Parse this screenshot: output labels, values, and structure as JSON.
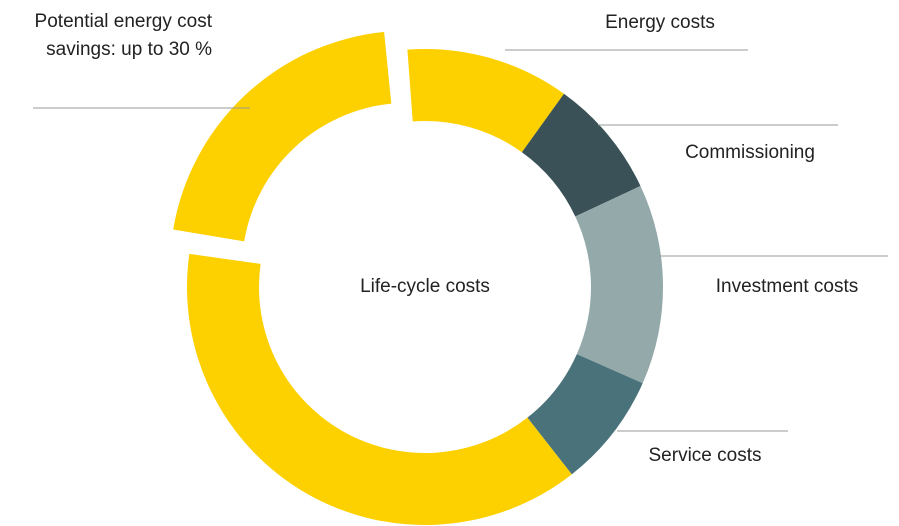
{
  "chart_data": {
    "type": "pie",
    "center_label": "Life-cycle costs",
    "categories": [
      "Potential energy cost savings: up to 30 %",
      "Energy costs",
      "Commissioning",
      "Investment costs",
      "Service costs",
      null
    ],
    "values": [
      21.6,
      11.1,
      8.1,
      13.6,
      7.8,
      37.8
    ],
    "colors": [
      "#fdd000",
      "#fdd000",
      "#3a5257",
      "#93a9aa",
      "#4a727b",
      "#fdd000"
    ]
  }
}
